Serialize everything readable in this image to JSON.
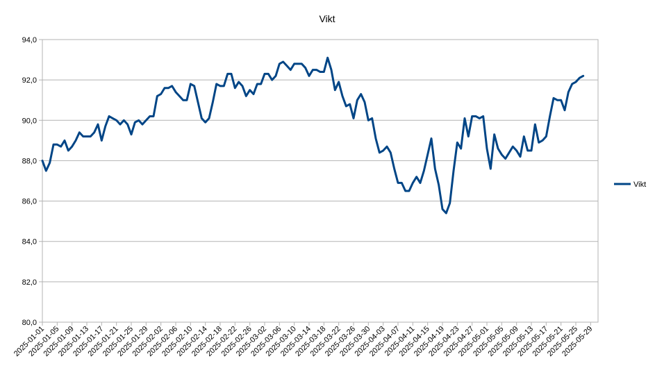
{
  "chart_data": {
    "type": "line",
    "title": "Vikt",
    "xlabel": "",
    "ylabel": "",
    "ylim": [
      80,
      94
    ],
    "yticks": [
      "80,0",
      "82,0",
      "84,0",
      "86,0",
      "88,0",
      "90,0",
      "92,0",
      "94,0"
    ],
    "xlim": [
      "2025-01-01",
      "2025-05-31"
    ],
    "xticks": [
      "2025-01-01",
      "2025-01-05",
      "2025-01-09",
      "2025-01-13",
      "2025-01-17",
      "2025-01-21",
      "2025-01-25",
      "2025-01-29",
      "2025-02-02",
      "2025-02-06",
      "2025-02-10",
      "2025-02-14",
      "2025-02-18",
      "2025-02-22",
      "2025-02-26",
      "2025-03-02",
      "2025-03-06",
      "2025-03-10",
      "2025-03-14",
      "2025-03-18",
      "2025-03-22",
      "2025-03-26",
      "2025-03-30",
      "2025-04-03",
      "2025-04-07",
      "2025-04-11",
      "2025-04-15",
      "2025-04-19",
      "2025-04-23",
      "2025-04-27",
      "2025-05-01",
      "2025-05-05",
      "2025-05-09",
      "2025-05-13",
      "2025-05-17",
      "2025-05-21",
      "2025-05-25",
      "2025-05-29"
    ],
    "grid": "horizontal",
    "legend": "right",
    "series": [
      {
        "name": "Vikt",
        "color": "#004586",
        "x": [
          "2025-01-01",
          "2025-01-02",
          "2025-01-03",
          "2025-01-04",
          "2025-01-05",
          "2025-01-06",
          "2025-01-07",
          "2025-01-08",
          "2025-01-09",
          "2025-01-10",
          "2025-01-11",
          "2025-01-12",
          "2025-01-13",
          "2025-01-14",
          "2025-01-15",
          "2025-01-16",
          "2025-01-17",
          "2025-01-18",
          "2025-01-19",
          "2025-01-20",
          "2025-01-21",
          "2025-01-22",
          "2025-01-23",
          "2025-01-24",
          "2025-01-25",
          "2025-01-26",
          "2025-01-27",
          "2025-01-28",
          "2025-01-29",
          "2025-01-30",
          "2025-01-31",
          "2025-02-01",
          "2025-02-02",
          "2025-02-03",
          "2025-02-04",
          "2025-02-05",
          "2025-02-06",
          "2025-02-07",
          "2025-02-08",
          "2025-02-09",
          "2025-02-10",
          "2025-02-11",
          "2025-02-12",
          "2025-02-13",
          "2025-02-14",
          "2025-02-15",
          "2025-02-16",
          "2025-02-17",
          "2025-02-18",
          "2025-02-19",
          "2025-02-20",
          "2025-02-21",
          "2025-02-22",
          "2025-02-23",
          "2025-02-24",
          "2025-02-25",
          "2025-02-26",
          "2025-02-27",
          "2025-02-28",
          "2025-03-01",
          "2025-03-02",
          "2025-03-03",
          "2025-03-04",
          "2025-03-05",
          "2025-03-06",
          "2025-03-07",
          "2025-03-08",
          "2025-03-09",
          "2025-03-10",
          "2025-03-11",
          "2025-03-12",
          "2025-03-13",
          "2025-03-14",
          "2025-03-15",
          "2025-03-16",
          "2025-03-17",
          "2025-03-18",
          "2025-03-19",
          "2025-03-20",
          "2025-03-21",
          "2025-03-22",
          "2025-03-23",
          "2025-03-24",
          "2025-03-25",
          "2025-03-26",
          "2025-03-27",
          "2025-03-28",
          "2025-03-29",
          "2025-03-30",
          "2025-03-31",
          "2025-04-01",
          "2025-04-02",
          "2025-04-03",
          "2025-04-04",
          "2025-04-05",
          "2025-04-06",
          "2025-04-07",
          "2025-04-08",
          "2025-04-09",
          "2025-04-10",
          "2025-04-11",
          "2025-04-12",
          "2025-04-13",
          "2025-04-14",
          "2025-04-15",
          "2025-04-16",
          "2025-04-17",
          "2025-04-18",
          "2025-04-19",
          "2025-04-20",
          "2025-04-21",
          "2025-04-22",
          "2025-04-23",
          "2025-04-24",
          "2025-04-25",
          "2025-04-26",
          "2025-04-27",
          "2025-04-28",
          "2025-04-29",
          "2025-04-30",
          "2025-05-01",
          "2025-05-02",
          "2025-05-03",
          "2025-05-04",
          "2025-05-05",
          "2025-05-06",
          "2025-05-07",
          "2025-05-08",
          "2025-05-09",
          "2025-05-10",
          "2025-05-11",
          "2025-05-12",
          "2025-05-13",
          "2025-05-14",
          "2025-05-15",
          "2025-05-16",
          "2025-05-17",
          "2025-05-18",
          "2025-05-19",
          "2025-05-20",
          "2025-05-21",
          "2025-05-22",
          "2025-05-23",
          "2025-05-24",
          "2025-05-25",
          "2025-05-26",
          "2025-05-27"
        ],
        "values": [
          88.0,
          87.5,
          87.9,
          88.8,
          88.8,
          88.7,
          89.0,
          88.5,
          88.7,
          89.0,
          89.4,
          89.2,
          89.2,
          89.2,
          89.4,
          89.8,
          89.0,
          89.7,
          90.2,
          90.1,
          90.0,
          89.8,
          90.0,
          89.8,
          89.3,
          89.9,
          90.0,
          89.8,
          90.0,
          90.2,
          90.2,
          91.2,
          91.3,
          91.6,
          91.6,
          91.7,
          91.4,
          91.2,
          91.0,
          91.0,
          91.8,
          91.7,
          90.9,
          90.1,
          89.9,
          90.1,
          90.9,
          91.8,
          91.7,
          91.7,
          92.3,
          92.3,
          91.6,
          91.9,
          91.7,
          91.2,
          91.5,
          91.3,
          91.8,
          91.8,
          92.3,
          92.3,
          92.0,
          92.2,
          92.8,
          92.9,
          92.7,
          92.5,
          92.8,
          92.8,
          92.8,
          92.6,
          92.2,
          92.5,
          92.5,
          92.4,
          92.4,
          93.1,
          92.5,
          91.5,
          91.9,
          91.2,
          90.7,
          90.8,
          90.1,
          91.0,
          91.3,
          90.9,
          90.0,
          90.1,
          89.1,
          88.4,
          88.5,
          88.7,
          88.4,
          87.6,
          86.9,
          86.9,
          86.5,
          86.5,
          86.9,
          87.2,
          86.9,
          87.5,
          88.3,
          89.1,
          87.6,
          86.8,
          85.6,
          85.4,
          85.9,
          87.5,
          88.9,
          88.6,
          90.1,
          89.2,
          90.2,
          90.2,
          90.1,
          90.2,
          88.6,
          87.6,
          89.3,
          88.6,
          88.3,
          88.1,
          88.4,
          88.7,
          88.5,
          88.2,
          89.2,
          88.5,
          88.5,
          89.8,
          88.9,
          89.0,
          89.2,
          90.2,
          91.1,
          91.0,
          91.0,
          90.5,
          91.4,
          91.8,
          91.9,
          92.1,
          92.2
        ]
      }
    ]
  }
}
